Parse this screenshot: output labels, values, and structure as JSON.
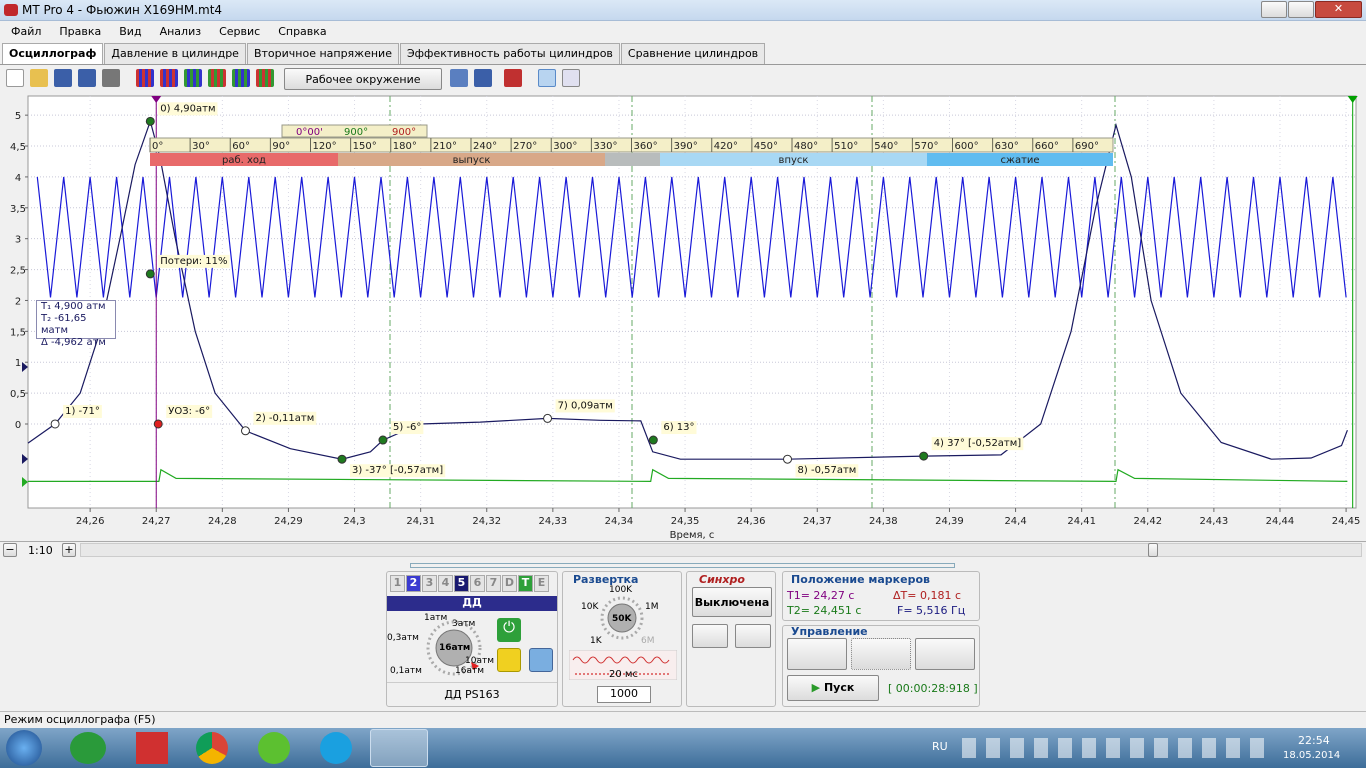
{
  "window": {
    "title": "MT Pro 4 - Фьюжин   X169HM.mt4"
  },
  "menu": [
    "Файл",
    "Правка",
    "Вид",
    "Анализ",
    "Сервис",
    "Справка"
  ],
  "tabs": [
    "Осциллограф",
    "Давление в цилиндре",
    "Вторичное напряжение",
    "Эффективность работы цилиндров",
    "Сравнение цилиндров"
  ],
  "toolbar": {
    "environment": "Рабочее окружение"
  },
  "crank_scale": {
    "t1": "0°00'",
    "t2": "900°",
    "delta": "900°",
    "degrees": [
      "0°",
      "30°",
      "60°",
      "90°",
      "120°",
      "150°",
      "180°",
      "210°",
      "240°",
      "270°",
      "300°",
      "330°",
      "360°",
      "390°",
      "420°",
      "450°",
      "480°",
      "510°",
      "540°",
      "570°",
      "600°",
      "630°",
      "660°",
      "690°"
    ],
    "phases": [
      "раб. ход",
      "выпуск",
      "впуск",
      "сжатие"
    ]
  },
  "markers_box": [
    "4,900 атм",
    "-61,65 матм",
    "-4,962 атм"
  ],
  "chart_data": {
    "type": "line",
    "x_label": "Время, с",
    "xlim": [
      24.2506,
      24.4515
    ],
    "ylim": [
      -1.36,
      5.31
    ],
    "xticks": [
      {
        "value": 24.26,
        "label": "24,26"
      },
      {
        "value": 24.27,
        "label": "24,27"
      },
      {
        "value": 24.28,
        "label": "24,28"
      },
      {
        "value": 24.29,
        "label": "24,29"
      },
      {
        "value": 24.3,
        "label": "24,3"
      },
      {
        "value": 24.31,
        "label": "24,31"
      },
      {
        "value": 24.32,
        "label": "24,32"
      },
      {
        "value": 24.33,
        "label": "24,33"
      },
      {
        "value": 24.34,
        "label": "24,34"
      },
      {
        "value": 24.35,
        "label": "24,35"
      },
      {
        "value": 24.36,
        "label": "24,36"
      },
      {
        "value": 24.37,
        "label": "24,37"
      },
      {
        "value": 24.38,
        "label": "24,38"
      },
      {
        "value": 24.39,
        "label": "24,39"
      },
      {
        "value": 24.4,
        "label": "24,4"
      },
      {
        "value": 24.41,
        "label": "24,41"
      },
      {
        "value": 24.42,
        "label": "24,42"
      },
      {
        "value": 24.43,
        "label": "24,43"
      },
      {
        "value": 24.44,
        "label": "24,44"
      },
      {
        "value": 24.45,
        "label": "24,45"
      }
    ],
    "yticks": [
      0,
      {
        "value": 0.5,
        "label": "0,5"
      },
      1,
      {
        "value": 1.5,
        "label": "1,5"
      },
      2,
      {
        "value": 2.5,
        "label": "2,5"
      },
      3,
      {
        "value": 3.5,
        "label": "3,5"
      },
      4,
      {
        "value": 4.5,
        "label": "4,5"
      },
      5
    ],
    "grid": true,
    "cursor_lines": [
      {
        "x": 24.27,
        "color": "#800080"
      },
      {
        "x": 24.451,
        "color": "#00a000"
      }
    ],
    "series": [
      {
        "color": "#1a1ad8",
        "x": [
          24.252,
          24.254,
          24.256,
          24.258,
          24.26,
          24.262,
          24.264,
          24.266,
          24.268,
          24.27,
          24.272,
          24.274,
          24.276,
          24.278,
          24.28,
          24.282,
          24.284,
          24.286,
          24.288,
          24.29,
          24.292,
          24.294,
          24.296,
          24.298,
          24.3,
          24.302,
          24.304,
          24.306,
          24.308,
          24.31,
          24.312,
          24.314,
          24.316,
          24.318,
          24.32,
          24.322,
          24.324,
          24.326,
          24.328,
          24.33,
          24.332,
          24.334,
          24.336,
          24.338,
          24.34,
          24.342,
          24.344,
          24.346,
          24.348,
          24.35,
          24.352,
          24.354,
          24.356,
          24.358,
          24.36,
          24.362,
          24.364,
          24.366,
          24.368,
          24.37,
          24.372,
          24.374,
          24.376,
          24.378,
          24.38,
          24.382,
          24.384,
          24.386,
          24.388,
          24.39,
          24.392,
          24.394,
          24.396,
          24.398,
          24.4,
          24.402,
          24.404,
          24.406,
          24.408,
          24.41,
          24.412,
          24.414,
          24.416,
          24.418,
          24.42,
          24.422,
          24.424,
          24.426,
          24.428,
          24.43,
          24.432,
          24.434,
          24.436,
          24.438,
          24.44,
          24.442,
          24.444,
          24.446,
          24.448,
          24.45
        ],
        "values": [
          4,
          2.05,
          4,
          2.05,
          4,
          2.05,
          4,
          2.05,
          4,
          2.05,
          4,
          2.05,
          4,
          2.05,
          4,
          2.05,
          4,
          2.05,
          4,
          2.05,
          4,
          2.05,
          4,
          2.05,
          4,
          2.05,
          4,
          2.05,
          4,
          2.05,
          4,
          2.05,
          4,
          2.05,
          4,
          2.05,
          4,
          2.05,
          4,
          2.05,
          4,
          2.05,
          4,
          2.05,
          4,
          2.05,
          4,
          2.05,
          4,
          2.05,
          4,
          2.05,
          4,
          2.05,
          4,
          2.05,
          4,
          2.05,
          4,
          2.05,
          4,
          2.05,
          4,
          2.05,
          4,
          2.05,
          4,
          2.05,
          4,
          2.05,
          4,
          2.05,
          4,
          2.05,
          4,
          2.05,
          4,
          2.05,
          4,
          2.05,
          4,
          2.05,
          4,
          2.05,
          4,
          2.05,
          4,
          2.05,
          4,
          2.05,
          4,
          2.05,
          4,
          2.05,
          4,
          2.05,
          4,
          2.05,
          4,
          2.05
        ]
      },
      {
        "color": "#1a1a60",
        "x": [
          24.2506,
          24.2547,
          24.2585,
          24.2615,
          24.2645,
          24.2668,
          24.2691,
          24.2706,
          24.2729,
          24.2759,
          24.2789,
          24.2835,
          24.2903,
          24.2981,
          24.3024,
          24.3043,
          24.3099,
          24.319,
          24.3292,
          24.3372,
          24.3433,
          24.3451,
          24.3493,
          24.3655,
          24.3861,
          24.3978,
          24.4038,
          24.4084,
          24.4121,
          24.4152,
          24.4175,
          24.4205,
          24.425,
          24.4311,
          24.4387,
          24.4447,
          24.4493,
          24.4502
        ],
        "values": [
          -0.31,
          0,
          0.5,
          1.5,
          3,
          4.2,
          4.9,
          4.3,
          3,
          1.5,
          0.5,
          -0.11,
          -0.4,
          -0.57,
          -0.45,
          -0.26,
          0,
          0.03,
          0.09,
          0.06,
          0.05,
          -0.45,
          -0.57,
          -0.57,
          -0.52,
          -0.5,
          0,
          1.5,
          3.5,
          4.84,
          4,
          2,
          0.5,
          -0.3,
          -0.57,
          -0.55,
          -0.35,
          -0.1
        ]
      },
      {
        "color": "#22aa22",
        "x": [
          24.2506,
          24.2704,
          24.2707,
          24.273,
          24.3448,
          24.3451,
          24.3475,
          24.4152,
          24.4155,
          24.418,
          24.4502
        ],
        "values": [
          -0.93,
          -0.93,
          -0.74,
          -0.88,
          -0.93,
          -0.74,
          -0.88,
          -0.93,
          -0.74,
          -0.88,
          -0.93
        ]
      }
    ],
    "annotations": [
      {
        "text": "0)  4,90атм",
        "x": 24.2691,
        "y": 4.9,
        "color": "#1f7a1f"
      },
      {
        "text": "Потери: 11%",
        "x": 24.2691,
        "y": 2.43,
        "color": "#1f7a1f"
      },
      {
        "text": "1)  -71°",
        "x": 24.2547,
        "y": 0,
        "color": "#ffffff"
      },
      {
        "text": "УОЗ: -6°",
        "x": 24.2703,
        "y": 0,
        "color": "#e02020"
      },
      {
        "text": "2)  -0,11атм",
        "x": 24.2835,
        "y": -0.11,
        "color": "#ffffff"
      },
      {
        "text": "3)  -37° [-0,57атм]",
        "x": 24.2981,
        "y": -0.57,
        "color": "#1f7a1f"
      },
      {
        "text": "5)  -6°",
        "x": 24.3043,
        "y": -0.26,
        "color": "#1f7a1f"
      },
      {
        "text": "7)  0,09атм",
        "x": 24.3292,
        "y": 0.09,
        "color": "#ffffff"
      },
      {
        "text": "6)  13°",
        "x": 24.3452,
        "y": -0.26,
        "color": "#1f7a1f"
      },
      {
        "text": "8)  -0,57атм",
        "x": 24.3655,
        "y": -0.57,
        "color": "#ffffff"
      },
      {
        "text": "4)  37° [-0,52атм]",
        "x": 24.3861,
        "y": -0.52,
        "color": "#1f7a1f"
      }
    ]
  },
  "scroll": {
    "zoom": "1:10"
  },
  "channel_panel": {
    "tabs": [
      "1",
      "2",
      "3",
      "4",
      "5",
      "6",
      "7",
      "D",
      "T",
      "E"
    ],
    "title": "ДД",
    "dial_labels": [
      "1атм",
      "3атм",
      "0,3атм",
      "16атм",
      "0,1атм",
      "10атм",
      "16атм"
    ],
    "sensor": "ДД PS163"
  },
  "sweep": {
    "title": "Развертка",
    "dial_labels": [
      "100K",
      "10K",
      "1M",
      "50K",
      "1K",
      "6M"
    ],
    "time": "20 мс",
    "count": "1000"
  },
  "sync": {
    "title": "Синхро",
    "state": "Выключена"
  },
  "marker_pos": {
    "title": "Положение маркеров",
    "t1": "T1= 24,27 с",
    "dt": "ΔT= 0,181 с",
    "t2": "T2= 24,451 с",
    "f": "F= 5,516 Гц"
  },
  "control": {
    "title": "Управление",
    "start": "Пуск",
    "timer": "[ 00:00:28:918 ]"
  },
  "status": "Режим осциллографа (F5)",
  "taskbar": {
    "lang": "RU",
    "time": "22:54",
    "date": "18.05.2014"
  }
}
